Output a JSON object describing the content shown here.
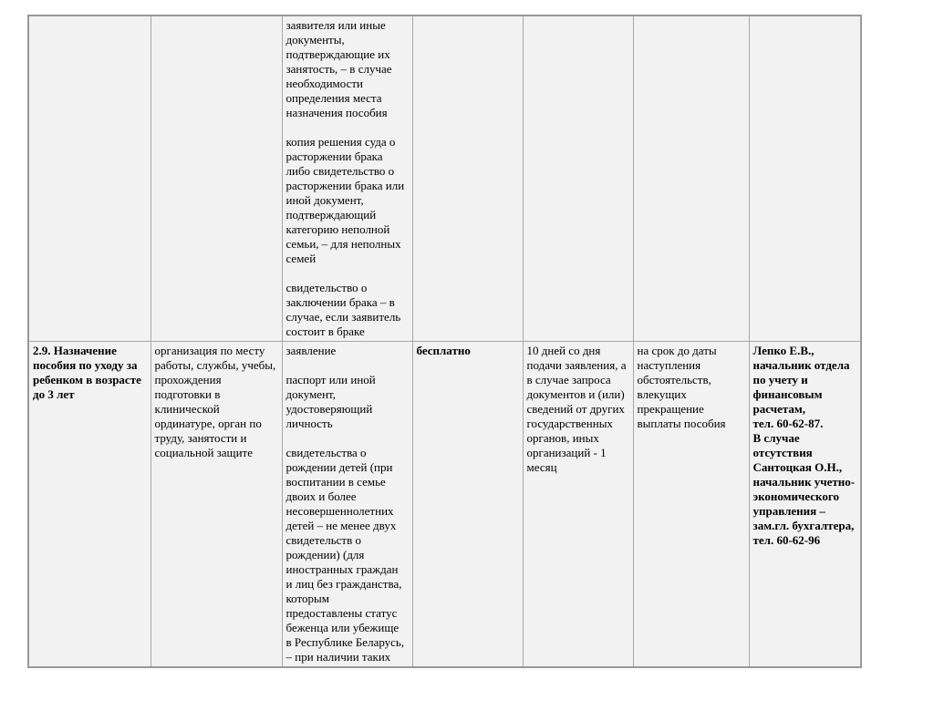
{
  "table": {
    "border_color": "#a8a8a8",
    "cell_background": "#f2f2f2",
    "page_background": "#ffffff",
    "rows": [
      {
        "name": "continuation-row",
        "cells": [
          {
            "text": "",
            "bold": false
          },
          {
            "text": "",
            "bold": false
          },
          {
            "text": "заявителя или иные документы, подтверждающие их занятость, – в случае необходимости определения места назначения пособия\n\nкопия решения суда о расторжении брака либо свидетельство о расторжении брака или иной документ, подтверждающий категорию неполной семьи, – для неполных семей\n\nсвидетельство о заключении брака – в случае, если заявитель состоит в браке",
            "bold": false
          },
          {
            "text": "",
            "bold": false
          },
          {
            "text": "",
            "bold": false
          },
          {
            "text": "",
            "bold": false
          },
          {
            "text": "",
            "bold": false
          }
        ]
      },
      {
        "name": "procedure-2-9-row",
        "cells": [
          {
            "text": "2.9. Назначение пособия по уходу за ребенком в возрасте до 3 лет",
            "bold": true
          },
          {
            "text": "организация по месту работы, службы, учебы, прохождения подготовки в клинической ординатуре, орган по труду, занятости и социальной защите",
            "bold": false
          },
          {
            "text": "заявление\n\nпаспорт или иной документ, удостоверяющий личность\n\nсвидетельства о рождении детей (при воспитании в семье двоих и более несовершеннолетних детей – не менее двух свидетельств о рождении) (для иностранных граждан и лиц без гражданства, которым предоставлены статус беженца или убежище в Республике Беларусь, – при наличии таких",
            "bold": false
          },
          {
            "text": "бесплатно",
            "bold": true
          },
          {
            "text": "10 дней со дня подачи заявления, а в случае запроса документов и (или) сведений от других государственных органов, иных организаций - 1 месяц",
            "bold": false
          },
          {
            "text": "на срок до даты наступления обстоятельств, влекущих прекращение выплаты пособия",
            "bold": false
          },
          {
            "text": "Лепко Е.В., начальник отдела по учету и финансовым расчетам,\nтел. 60-62-87.\nВ случае отсутствия Сантоцкая О.Н., начальник учетно-экономического управления – зам.гл. бухгалтера,\nтел. 60-62-96",
            "bold": true
          }
        ]
      }
    ]
  }
}
